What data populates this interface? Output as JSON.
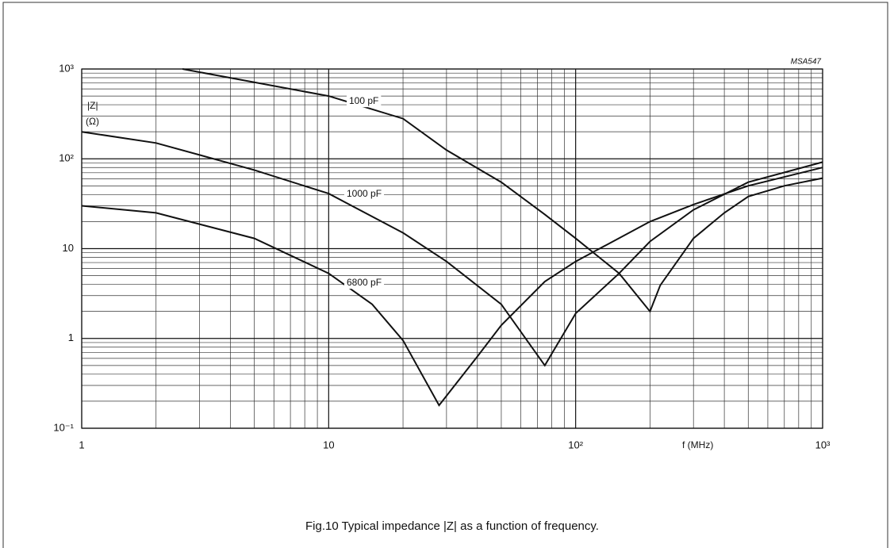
{
  "chart_data": {
    "type": "line",
    "annotation": "MSA547",
    "ylabel": "|Z|",
    "ylabel_unit": "(Ω)",
    "xlabel": "f (MHz)",
    "caption": "Fig.10  Typical impedance |Z| as a function of frequency.",
    "xscale": "log",
    "yscale": "log",
    "grid": true,
    "minor_grid": true,
    "xlim": [
      1,
      1000
    ],
    "ylim": [
      0.1,
      1000
    ],
    "xticks": [
      1,
      10,
      {
        "value": 100,
        "label": "10²"
      },
      {
        "value": 1000,
        "label": "10³"
      }
    ],
    "yticks": [
      {
        "value": 0.1,
        "label": "10⁻¹"
      },
      1,
      10,
      {
        "value": 100,
        "label": "10²"
      },
      {
        "value": 1000,
        "label": "10³"
      }
    ],
    "series": [
      {
        "name": "100 pF",
        "color": "#111111",
        "x": [
          2.56,
          10,
          20,
          30,
          50,
          75,
          100,
          150,
          200,
          220,
          300,
          400,
          500,
          700,
          1000
        ],
        "values": [
          1000,
          500,
          280,
          125,
          55,
          24,
          13,
          5.3,
          2.0,
          3.9,
          13,
          25,
          38,
          50,
          61
        ]
      },
      {
        "name": "1000 pF",
        "color": "#111111",
        "x": [
          1,
          2,
          5,
          10,
          20,
          30,
          50,
          75,
          100,
          150,
          200,
          300,
          500,
          1000
        ],
        "values": [
          200,
          150,
          75,
          41,
          15,
          7.2,
          2.4,
          0.5,
          1.9,
          5.3,
          12,
          27,
          55,
          92
        ]
      },
      {
        "name": "6800 pF",
        "color": "#111111",
        "x": [
          1,
          2,
          5,
          10,
          15,
          20,
          28,
          40,
          50,
          75,
          100,
          200,
          300,
          500,
          1000
        ],
        "values": [
          30,
          25,
          13,
          5.3,
          2.4,
          0.95,
          0.18,
          0.63,
          1.4,
          4.3,
          7.2,
          20,
          31,
          50,
          80
        ]
      }
    ]
  }
}
